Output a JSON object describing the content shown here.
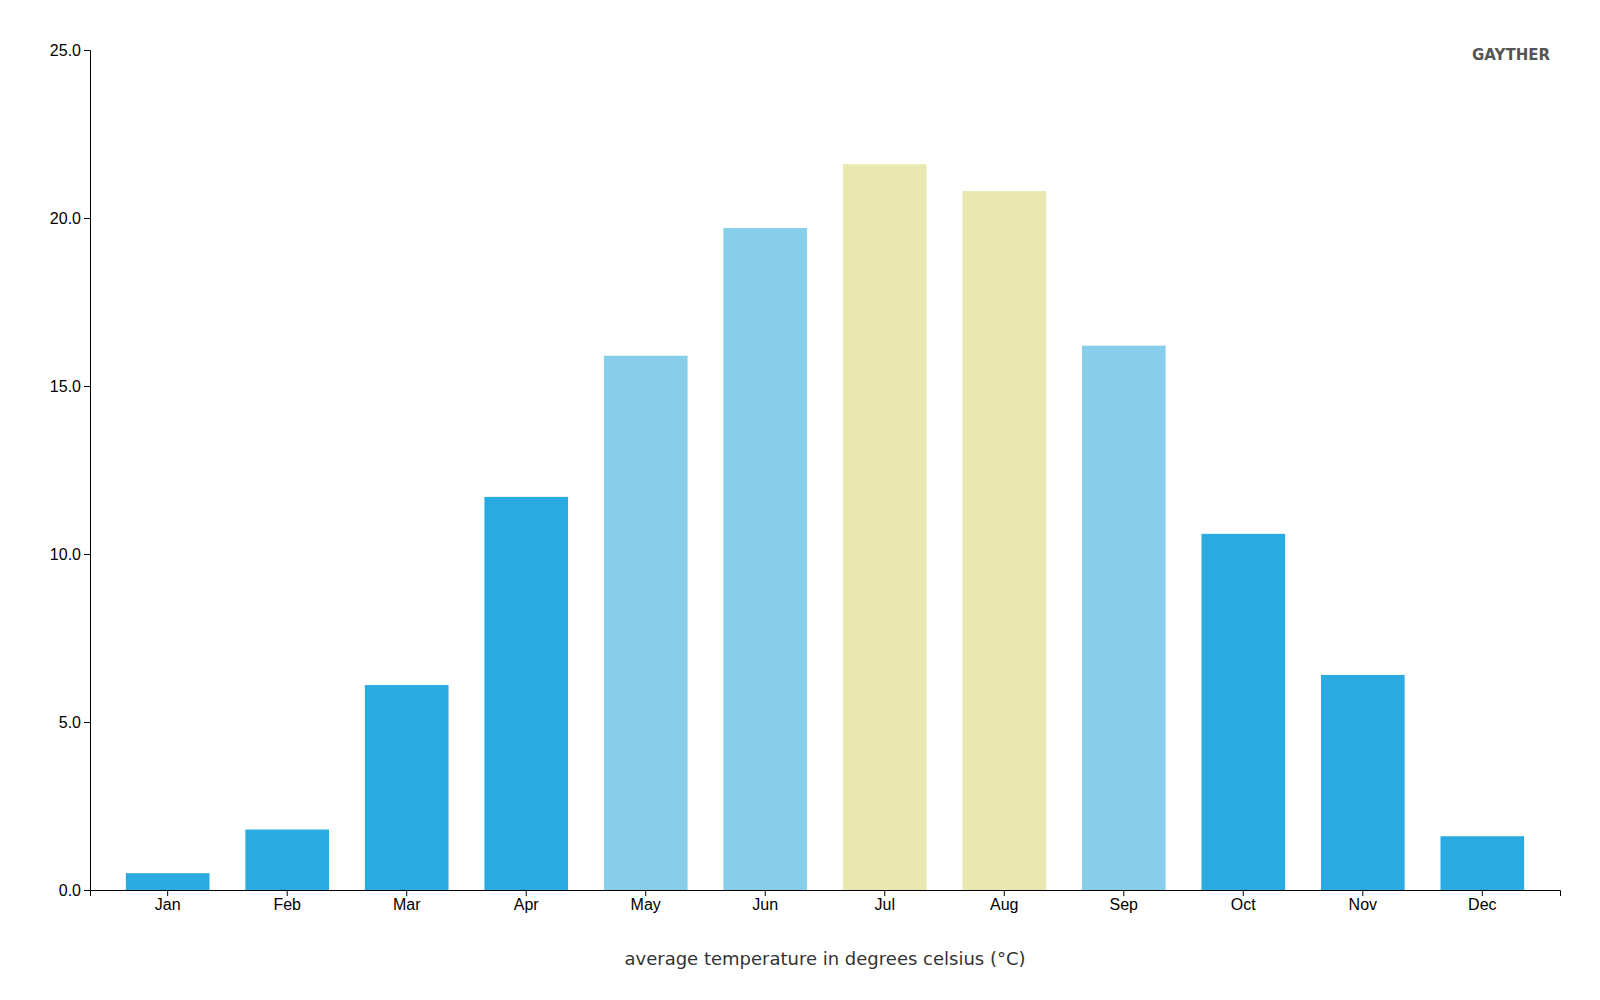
{
  "chart_data": {
    "type": "bar",
    "xlabel": "average temperature in degrees celsius (°C)",
    "categories": [
      "Jan",
      "Feb",
      "Mar",
      "Apr",
      "May",
      "Jun",
      "Jul",
      "Aug",
      "Sep",
      "Oct",
      "Nov",
      "Dec"
    ],
    "values": [
      0.5,
      1.8,
      6.1,
      11.7,
      15.9,
      19.7,
      21.6,
      20.8,
      16.2,
      10.6,
      6.4,
      1.6
    ],
    "colors": [
      "#29abe2",
      "#29abe2",
      "#29abe2",
      "#29abe2",
      "#87ceeb",
      "#87ceeb",
      "#e8e8b0",
      "#e8e8b0",
      "#87ceeb",
      "#29abe2",
      "#29abe2",
      "#29abe2"
    ],
    "ylim": [
      0,
      25
    ],
    "yticks": [
      {
        "value": 0.0,
        "label": "0.0"
      },
      {
        "value": 5.0,
        "label": "5.0"
      },
      {
        "value": 10.0,
        "label": "10.0"
      },
      {
        "value": 15.0,
        "label": "15.0"
      },
      {
        "value": 20.0,
        "label": "20.0"
      },
      {
        "value": 25.0,
        "label": "25.0"
      }
    ],
    "grid": false,
    "annotations": [
      "GAYTHER"
    ]
  }
}
